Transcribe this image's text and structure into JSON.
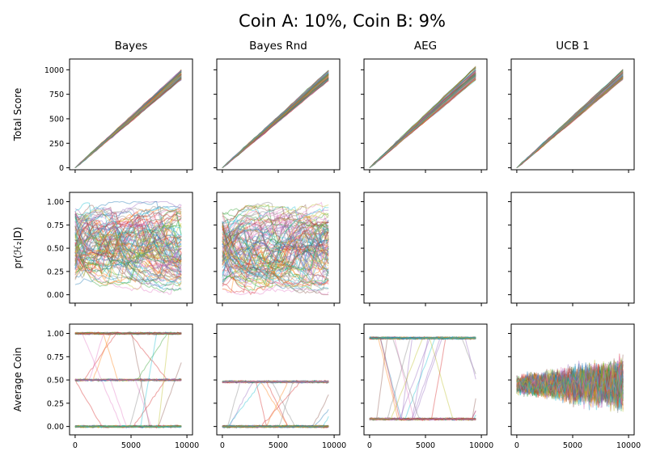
{
  "chart_data": {
    "type": "line",
    "title": "Coin A: 10%, Coin B: 9%",
    "columns": [
      "Bayes",
      "Bayes Rnd",
      "AEG",
      "UCB 1"
    ],
    "rows": [
      {
        "ylabel": "Total Score",
        "ylim": [
          -20,
          1110
        ],
        "yticks": [
          "0",
          "250",
          "500",
          "750",
          "1000"
        ]
      },
      {
        "ylabel": "pr(ℋ₂|D)",
        "ylim": [
          -0.09,
          1.1
        ],
        "yticks": [
          "0.00",
          "0.25",
          "0.50",
          "0.75",
          "1.00"
        ]
      },
      {
        "ylabel": "Average Coin",
        "ylim": [
          -0.09,
          1.1
        ],
        "yticks": [
          "0.00",
          "0.25",
          "0.50",
          "0.75",
          "1.00"
        ]
      }
    ],
    "xlim": [
      -500,
      10500
    ],
    "xticks": [
      "0",
      "5000",
      "10000"
    ],
    "x_range": [
      0,
      9500
    ],
    "series_per_panel": 100,
    "panels": [
      {
        "row": 0,
        "col": 0,
        "description": "total score grows linearly",
        "end_value_range": [
          900,
          1000
        ]
      },
      {
        "row": 0,
        "col": 1,
        "description": "total score grows linearly",
        "end_value_range": [
          890,
          1000
        ]
      },
      {
        "row": 0,
        "col": 2,
        "description": "total score grows linearly",
        "end_value_range": [
          900,
          1040
        ]
      },
      {
        "row": 0,
        "col": 3,
        "description": "total score grows linearly",
        "end_value_range": [
          900,
          1000
        ]
      },
      {
        "row": 1,
        "col": 0,
        "description": "posterior trajectories wander between 0 and 1",
        "range": [
          0.0,
          1.0
        ]
      },
      {
        "row": 1,
        "col": 1,
        "description": "posterior trajectories wander between 0 and 1",
        "range": [
          0.0,
          1.0
        ]
      },
      {
        "row": 1,
        "col": 2,
        "description": "empty",
        "range": null
      },
      {
        "row": 1,
        "col": 3,
        "description": "empty",
        "range": null
      },
      {
        "row": 2,
        "col": 0,
        "description": "average coin clusters at 0.0, 0.5 and 1.0 with transitions",
        "levels": [
          0.0,
          0.5,
          1.0
        ]
      },
      {
        "row": 2,
        "col": 1,
        "description": "average coin clusters at 0.0 and ~0.5 with transitions",
        "levels": [
          0.0,
          0.48
        ]
      },
      {
        "row": 2,
        "col": 2,
        "description": "average coin clusters near 0.08 and 0.95 with transitions",
        "levels": [
          0.08,
          0.95
        ]
      },
      {
        "row": 2,
        "col": 3,
        "description": "average coin noisy band around 0.4-0.5",
        "center": 0.45,
        "spread": 0.3
      }
    ],
    "colors": [
      "#1f77b4",
      "#ff7f0e",
      "#2ca02c",
      "#d62728",
      "#9467bd",
      "#8c564b",
      "#e377c2",
      "#7f7f7f",
      "#bcbd22",
      "#17becf"
    ]
  }
}
